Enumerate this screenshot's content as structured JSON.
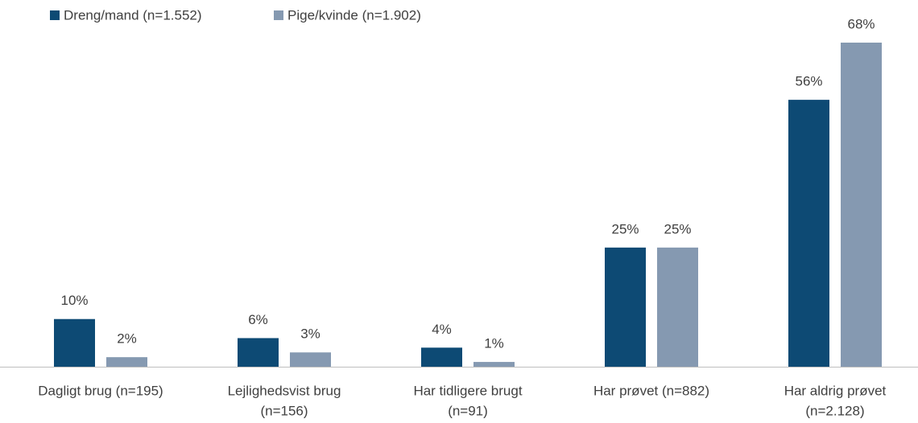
{
  "chart_data": {
    "type": "bar",
    "categories": [
      [
        "Dagligt brug    (n=195)"
      ],
      [
        "Lejlighedsvist brug",
        "(n=156)"
      ],
      [
        "Har tidligere brugt",
        "(n=91)"
      ],
      [
        "Har prøvet  (n=882)"
      ],
      [
        "Har aldrig prøvet",
        "(n=2.128)"
      ]
    ],
    "series": [
      {
        "name": "Dreng/mand (n=1.552)",
        "color": "#0d4a74",
        "values": [
          10,
          6,
          4,
          25,
          56
        ],
        "value_labels": [
          "10%",
          "6%",
          "4%",
          "25%",
          "56%"
        ]
      },
      {
        "name": "Pige/kvinde (n=1.902)",
        "color": "#8599b1",
        "values": [
          2,
          3,
          1,
          25,
          68
        ],
        "value_labels": [
          "2%",
          "3%",
          "1%",
          "25%",
          "68%"
        ]
      }
    ],
    "legend": "top-left"
  }
}
